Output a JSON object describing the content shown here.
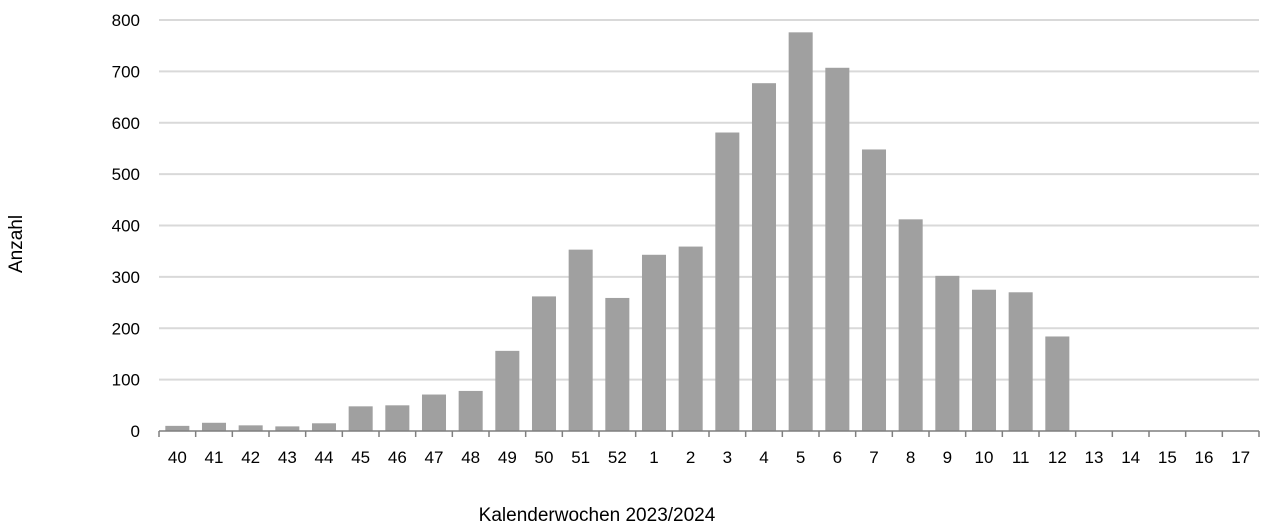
{
  "chart_data": {
    "type": "bar",
    "title": "",
    "xlabel": "Kalenderwochen 2023/2024",
    "ylabel": "Anzahl",
    "ylim": [
      0,
      800
    ],
    "yticks": [
      "0",
      "100",
      "200",
      "300",
      "400",
      "500",
      "600",
      "700",
      "800"
    ],
    "grid": true,
    "categories": [
      "40",
      "41",
      "42",
      "43",
      "44",
      "45",
      "46",
      "47",
      "48",
      "49",
      "50",
      "51",
      "52",
      "1",
      "2",
      "3",
      "4",
      "5",
      "6",
      "7",
      "8",
      "9",
      "10",
      "11",
      "12",
      "13",
      "14",
      "15",
      "16",
      "17"
    ],
    "values": [
      10,
      16,
      11,
      9,
      15,
      48,
      50,
      71,
      78,
      156,
      262,
      353,
      259,
      343,
      359,
      581,
      677,
      776,
      707,
      548,
      412,
      302,
      275,
      270,
      184,
      null,
      null,
      null,
      null,
      null
    ]
  },
  "colors": {
    "bar": "#a0a0a0",
    "gridline": "#d9d9d9",
    "axis": "#7f7f7f",
    "text": "#000000"
  }
}
